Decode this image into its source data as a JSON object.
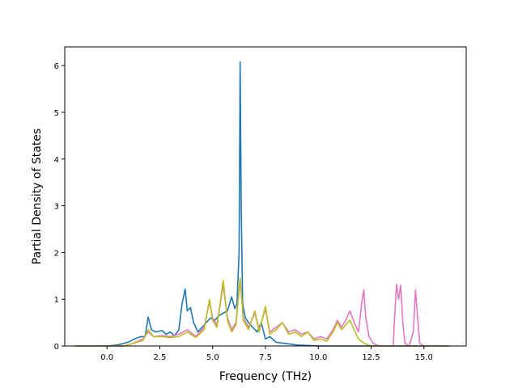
{
  "chart_data": {
    "type": "line",
    "xlabel": "Frequency (THz)",
    "ylabel": "Partial Density of States",
    "xlim": [
      -2.0,
      17.0
    ],
    "ylim": [
      0,
      6.4
    ],
    "x_ticks": [
      0.0,
      2.5,
      5.0,
      7.5,
      10.0,
      12.5,
      15.0
    ],
    "x_tick_labels": [
      "0.0",
      "2.5",
      "5.0",
      "7.5",
      "10.0",
      "12.5",
      "15.0"
    ],
    "y_ticks": [
      0,
      1,
      2,
      3,
      4,
      5,
      6
    ],
    "y_tick_labels": [
      "0",
      "1",
      "2",
      "3",
      "4",
      "5",
      "6"
    ],
    "grid": false,
    "series": [
      {
        "color": "#1f77b4",
        "points": [
          [
            -1.5,
            0
          ],
          [
            0,
            0
          ],
          [
            0.5,
            0.02
          ],
          [
            1.0,
            0.08
          ],
          [
            1.3,
            0.15
          ],
          [
            1.6,
            0.2
          ],
          [
            1.8,
            0.2
          ],
          [
            1.95,
            0.62
          ],
          [
            2.1,
            0.35
          ],
          [
            2.3,
            0.3
          ],
          [
            2.6,
            0.33
          ],
          [
            2.8,
            0.25
          ],
          [
            3.0,
            0.3
          ],
          [
            3.2,
            0.22
          ],
          [
            3.4,
            0.35
          ],
          [
            3.55,
            0.9
          ],
          [
            3.7,
            1.22
          ],
          [
            3.8,
            0.75
          ],
          [
            3.95,
            0.82
          ],
          [
            4.1,
            0.5
          ],
          [
            4.3,
            0.3
          ],
          [
            4.5,
            0.4
          ],
          [
            4.7,
            0.5
          ],
          [
            4.9,
            0.6
          ],
          [
            5.1,
            0.55
          ],
          [
            5.3,
            0.65
          ],
          [
            5.5,
            0.7
          ],
          [
            5.7,
            0.75
          ],
          [
            5.9,
            1.05
          ],
          [
            6.05,
            0.8
          ],
          [
            6.15,
            0.9
          ],
          [
            6.25,
            2.0
          ],
          [
            6.3,
            6.08
          ],
          [
            6.35,
            3.0
          ],
          [
            6.42,
            0.9
          ],
          [
            6.55,
            0.6
          ],
          [
            6.7,
            0.5
          ],
          [
            6.9,
            0.4
          ],
          [
            7.1,
            0.3
          ],
          [
            7.3,
            0.5
          ],
          [
            7.5,
            0.15
          ],
          [
            7.7,
            0.2
          ],
          [
            8.0,
            0.08
          ],
          [
            8.5,
            0.05
          ],
          [
            9.0,
            0.02
          ],
          [
            10,
            0
          ],
          [
            12,
            0
          ],
          [
            16.2,
            0
          ]
        ]
      },
      {
        "color": "#e377c2",
        "points": [
          [
            -1.5,
            0
          ],
          [
            0.8,
            0
          ],
          [
            1.2,
            0.05
          ],
          [
            1.7,
            0.15
          ],
          [
            1.95,
            0.3
          ],
          [
            2.2,
            0.2
          ],
          [
            2.6,
            0.22
          ],
          [
            3.0,
            0.2
          ],
          [
            3.4,
            0.25
          ],
          [
            3.8,
            0.35
          ],
          [
            4.2,
            0.2
          ],
          [
            4.6,
            0.4
          ],
          [
            4.85,
            0.95
          ],
          [
            5.0,
            0.6
          ],
          [
            5.2,
            0.45
          ],
          [
            5.5,
            1.3
          ],
          [
            5.7,
            0.6
          ],
          [
            5.9,
            0.35
          ],
          [
            6.1,
            0.5
          ],
          [
            6.3,
            1.4
          ],
          [
            6.45,
            0.6
          ],
          [
            6.7,
            0.4
          ],
          [
            7.0,
            0.7
          ],
          [
            7.2,
            0.35
          ],
          [
            7.5,
            0.8
          ],
          [
            7.7,
            0.3
          ],
          [
            8.0,
            0.4
          ],
          [
            8.3,
            0.5
          ],
          [
            8.6,
            0.3
          ],
          [
            8.9,
            0.35
          ],
          [
            9.2,
            0.25
          ],
          [
            9.5,
            0.3
          ],
          [
            9.8,
            0.15
          ],
          [
            10.1,
            0.2
          ],
          [
            10.4,
            0.15
          ],
          [
            10.7,
            0.35
          ],
          [
            10.9,
            0.55
          ],
          [
            11.1,
            0.4
          ],
          [
            11.3,
            0.55
          ],
          [
            11.5,
            0.75
          ],
          [
            11.7,
            0.5
          ],
          [
            11.9,
            0.3
          ],
          [
            12.05,
            0.9
          ],
          [
            12.15,
            1.2
          ],
          [
            12.25,
            0.6
          ],
          [
            12.4,
            0.2
          ],
          [
            12.6,
            0.05
          ],
          [
            12.9,
            0
          ],
          [
            13.55,
            0
          ],
          [
            13.6,
            0.5
          ],
          [
            13.7,
            1.32
          ],
          [
            13.8,
            1.0
          ],
          [
            13.9,
            1.3
          ],
          [
            14.0,
            0.5
          ],
          [
            14.1,
            0.05
          ],
          [
            14.3,
            0
          ],
          [
            14.5,
            0.3
          ],
          [
            14.6,
            1.2
          ],
          [
            14.7,
            0.6
          ],
          [
            14.8,
            0.05
          ],
          [
            15.0,
            0
          ],
          [
            16.2,
            0
          ]
        ]
      },
      {
        "color": "#bcbd22",
        "points": [
          [
            -1.5,
            0
          ],
          [
            0.8,
            0
          ],
          [
            1.2,
            0.05
          ],
          [
            1.7,
            0.12
          ],
          [
            1.95,
            0.35
          ],
          [
            2.2,
            0.2
          ],
          [
            2.6,
            0.2
          ],
          [
            3.0,
            0.18
          ],
          [
            3.4,
            0.2
          ],
          [
            3.8,
            0.3
          ],
          [
            4.2,
            0.18
          ],
          [
            4.6,
            0.35
          ],
          [
            4.85,
            1.0
          ],
          [
            5.0,
            0.55
          ],
          [
            5.2,
            0.4
          ],
          [
            5.5,
            1.4
          ],
          [
            5.7,
            0.55
          ],
          [
            5.9,
            0.3
          ],
          [
            6.1,
            0.45
          ],
          [
            6.3,
            1.45
          ],
          [
            6.45,
            0.55
          ],
          [
            6.7,
            0.35
          ],
          [
            7.0,
            0.75
          ],
          [
            7.2,
            0.3
          ],
          [
            7.5,
            0.85
          ],
          [
            7.7,
            0.25
          ],
          [
            8.0,
            0.35
          ],
          [
            8.3,
            0.5
          ],
          [
            8.6,
            0.25
          ],
          [
            8.9,
            0.3
          ],
          [
            9.2,
            0.2
          ],
          [
            9.5,
            0.3
          ],
          [
            9.8,
            0.12
          ],
          [
            10.1,
            0.15
          ],
          [
            10.4,
            0.1
          ],
          [
            10.7,
            0.3
          ],
          [
            10.9,
            0.5
          ],
          [
            11.1,
            0.35
          ],
          [
            11.3,
            0.45
          ],
          [
            11.5,
            0.55
          ],
          [
            11.7,
            0.35
          ],
          [
            11.9,
            0.15
          ],
          [
            12.2,
            0.05
          ],
          [
            12.5,
            0
          ],
          [
            16.2,
            0
          ]
        ]
      }
    ]
  }
}
